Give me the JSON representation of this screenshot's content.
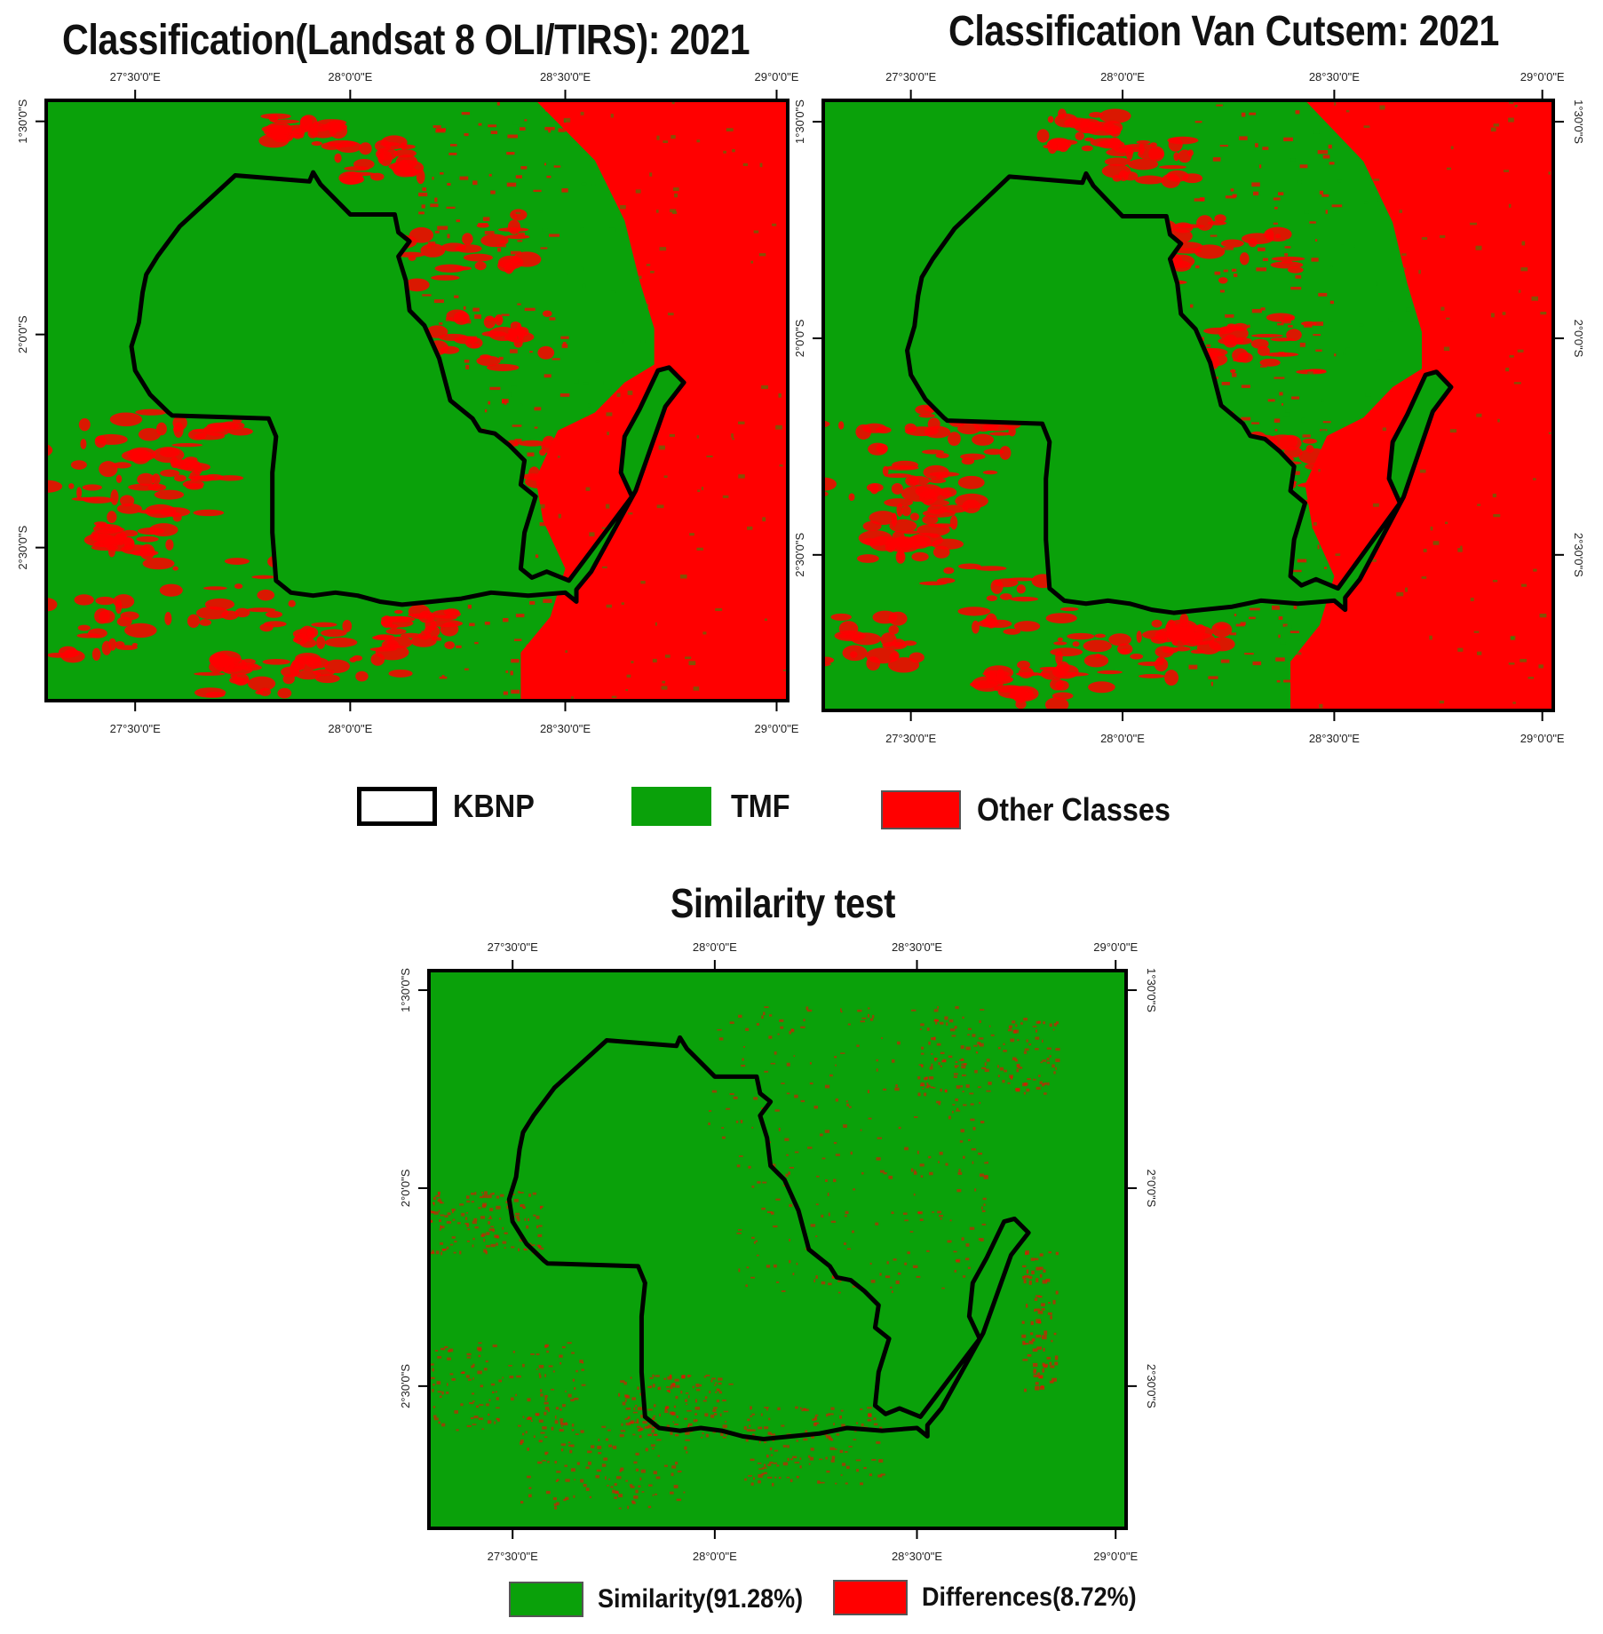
{
  "colors": {
    "tmf": "#0aa10a",
    "other": "#ff0000",
    "boundary": "#000000",
    "frame": "#000000"
  },
  "panels": [
    {
      "id": "landsat",
      "title": "Classification(Landsat 8 OLI/TIRS): 2021",
      "lon_labels": [
        "27°30'0\"E",
        "28°0'0\"E",
        "28°30'0\"E",
        "29°0'0\"E"
      ],
      "lat_labels": [
        "1°30'0\"S",
        "2°0'0\"S",
        "2°30'0\"S"
      ],
      "right_lat_labels": false
    },
    {
      "id": "vancutsem",
      "title": "Classification Van Cutsem: 2021",
      "lon_labels": [
        "27°30'0\"E",
        "28°0'0\"E",
        "28°30'0\"E",
        "29°0'0\"E"
      ],
      "lat_labels": [
        "1°30'0\"S",
        "2°0'0\"S",
        "2°30'0\"S"
      ],
      "right_lat_labels": true
    },
    {
      "id": "similarity",
      "title": "Similarity test",
      "lon_labels": [
        "27°30'0\"E",
        "28°0'0\"E",
        "28°30'0\"E",
        "29°0'0\"E"
      ],
      "lat_labels": [
        "1°30'0\"S",
        "2°0'0\"S",
        "2°30'0\"S"
      ],
      "right_lat_labels": true
    }
  ],
  "legend_top": [
    {
      "label": "KBNP",
      "icon": "boundary-outline"
    },
    {
      "label": "TMF",
      "icon": "green-fill"
    },
    {
      "label": "Other Classes",
      "icon": "red-fill"
    }
  ],
  "legend_bottom": [
    {
      "label": "Similarity(91.28%)",
      "icon": "green-fill"
    },
    {
      "label": "Differences(8.72%)",
      "icon": "red-fill"
    }
  ]
}
